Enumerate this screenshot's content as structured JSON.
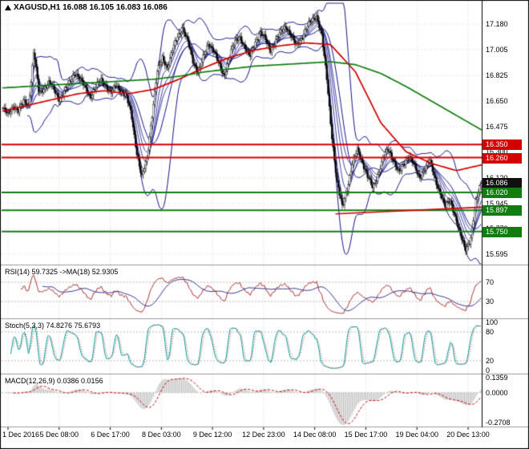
{
  "title": {
    "text": "XAGUSD,H1 16.088 16.105 16.083 16.086"
  },
  "colors": {
    "background": "#ffffff",
    "border": "#000000",
    "divider": "#9a9a9a",
    "grid": "#d8d8d8",
    "level": "#b8b8b8",
    "candle": "#000000",
    "bollinger": "#14148c",
    "ma_fast_red": "#d40000",
    "ma_slow_green": "#0f7d0f",
    "rsi": "#b03030",
    "rsi_ma": "#2f2f8f",
    "stoch_main": "#009e9e",
    "stoch_signal": "#cc4444",
    "macd_hist": "#c0c0c0",
    "macd_signal": "#cc0000"
  },
  "price_axis": {
    "ticks": [
      "17.180",
      "17.005",
      "16.825",
      "16.650",
      "16.475",
      "16.300",
      "16.120",
      "15.945",
      "15.770",
      "15.595"
    ],
    "badges": [
      {
        "label": "16.350",
        "value": 16.35,
        "color": "#d40000"
      },
      {
        "label": "16.260",
        "value": 16.26,
        "color": "#d40000"
      },
      {
        "label": "16.086",
        "value": 16.086,
        "color": "#101010"
      },
      {
        "label": "16.020",
        "value": 16.02,
        "color": "#0f7d0f"
      },
      {
        "label": "15.897",
        "value": 15.897,
        "color": "#0f7d0f"
      },
      {
        "label": "15.750",
        "value": 15.75,
        "color": "#0f7d0f"
      }
    ]
  },
  "time_axis": {
    "labels": [
      "1 Dec 2016",
      "5 Dec 08:00",
      "6 Dec 17:00",
      "8 Dec 03:00",
      "9 Dec 12:00",
      "12 Dec 23:00",
      "14 Dec 08:00",
      "15 Dec 17:00",
      "19 Dec 04:00",
      "20 Dec 13:00"
    ]
  },
  "panels": {
    "rsi": {
      "label": "RSI(14) 59.7325 ->MA(18) 52.9305",
      "levels": [
        "70",
        "30"
      ],
      "level_lines": [
        70,
        30
      ]
    },
    "stoch": {
      "label": "Stoch(5,3,3) 74.8276 75.6793",
      "levels": [
        "100",
        "80",
        "20",
        "0"
      ],
      "level_lines": [
        80,
        20
      ]
    },
    "macd": {
      "label": "MACD(12,26,9) 0.0386 0.0156",
      "levels": [
        "0.1359",
        "0.0000",
        "-0.2708"
      ],
      "level_lines": [
        0
      ]
    }
  },
  "chart_data": {
    "type": "candlestick",
    "symbol": "XAGUSD",
    "timeframe": "H1",
    "ohlc_current": {
      "open": 16.088,
      "high": 16.105,
      "low": 16.083,
      "close": 16.086
    },
    "y_ticks": [
      17.18,
      17.005,
      16.825,
      16.65,
      16.475,
      16.3,
      16.12,
      15.945,
      15.77,
      15.595
    ],
    "price_range": [
      15.52,
      17.335
    ],
    "x_labels": [
      "1 Dec 2016",
      "5 Dec 08:00",
      "6 Dec 17:00",
      "8 Dec 03:00",
      "9 Dec 12:00",
      "12 Dec 23:00",
      "14 Dec 08:00",
      "15 Dec 17:00",
      "19 Dec 04:00",
      "20 Dec 13:00"
    ],
    "close_anchors": [
      16.6,
      16.55,
      16.62,
      16.58,
      16.65,
      16.62,
      17.0,
      16.7,
      16.74,
      16.78,
      16.72,
      16.66,
      16.72,
      16.78,
      16.85,
      16.8,
      16.74,
      16.68,
      16.74,
      16.8,
      16.76,
      16.7,
      16.76,
      16.72,
      16.68,
      16.55,
      16.3,
      16.12,
      16.25,
      16.55,
      16.85,
      16.95,
      16.88,
      17.0,
      17.1,
      17.15,
      17.05,
      16.92,
      16.85,
      16.95,
      17.05,
      17.0,
      16.9,
      16.82,
      16.95,
      17.05,
      17.1,
      17.02,
      16.95,
      17.05,
      17.12,
      17.08,
      17.0,
      17.06,
      17.12,
      17.17,
      17.1,
      17.03,
      17.08,
      17.15,
      17.2,
      17.24,
      17.1,
      16.8,
      16.4,
      16.08,
      15.92,
      16.05,
      16.22,
      16.32,
      16.22,
      16.12,
      16.05,
      16.15,
      16.26,
      16.32,
      16.24,
      16.15,
      16.22,
      16.28,
      16.2,
      16.12,
      16.18,
      16.24,
      16.12,
      16.02,
      15.92,
      15.97,
      15.85,
      15.72,
      15.63,
      15.7,
      15.95,
      16.09
    ],
    "ma_red": [
      16.58,
      16.62,
      16.66,
      16.7,
      16.72,
      16.7,
      16.73,
      16.8,
      16.88,
      16.95,
      17.0,
      17.03,
      17.05,
      17.04,
      16.85,
      16.5,
      16.3,
      16.22,
      16.17,
      16.21
    ],
    "ma_green": [
      16.74,
      16.75,
      16.76,
      16.77,
      16.78,
      16.79,
      16.8,
      16.82,
      16.85,
      16.87,
      16.89,
      16.9,
      16.91,
      16.92,
      16.9,
      16.84,
      16.75,
      16.65,
      16.55,
      16.45
    ],
    "h_levels": [
      {
        "value": 16.35,
        "color": "#d40000"
      },
      {
        "value": 16.26,
        "color": "#d40000"
      },
      {
        "value": 16.02,
        "color": "#0f7d0f"
      },
      {
        "value": 15.897,
        "color": "#0f7d0f"
      },
      {
        "value": 15.75,
        "color": "#0f7d0f"
      }
    ],
    "trend_segment": {
      "x0": 0.695,
      "v0": 15.872,
      "x1": 1.0,
      "v1": 15.918,
      "color": "#d40000"
    },
    "bollinger": {
      "period": 20,
      "deviation": 2
    },
    "emas": [
      4,
      8,
      13,
      18
    ],
    "indicators": {
      "rsi": {
        "period": 14,
        "ma_period": 18,
        "value": 59.7325,
        "ma_value": 52.9305
      },
      "stoch": {
        "k": 5,
        "d": 3,
        "slowing": 3,
        "main": 74.8276,
        "signal": 75.6793
      },
      "macd": {
        "fast": 12,
        "slow": 26,
        "signal": 9,
        "value": 0.0386,
        "signal_value": 0.0156,
        "scale_max": 0.1359,
        "scale_min": -0.2708
      }
    }
  }
}
